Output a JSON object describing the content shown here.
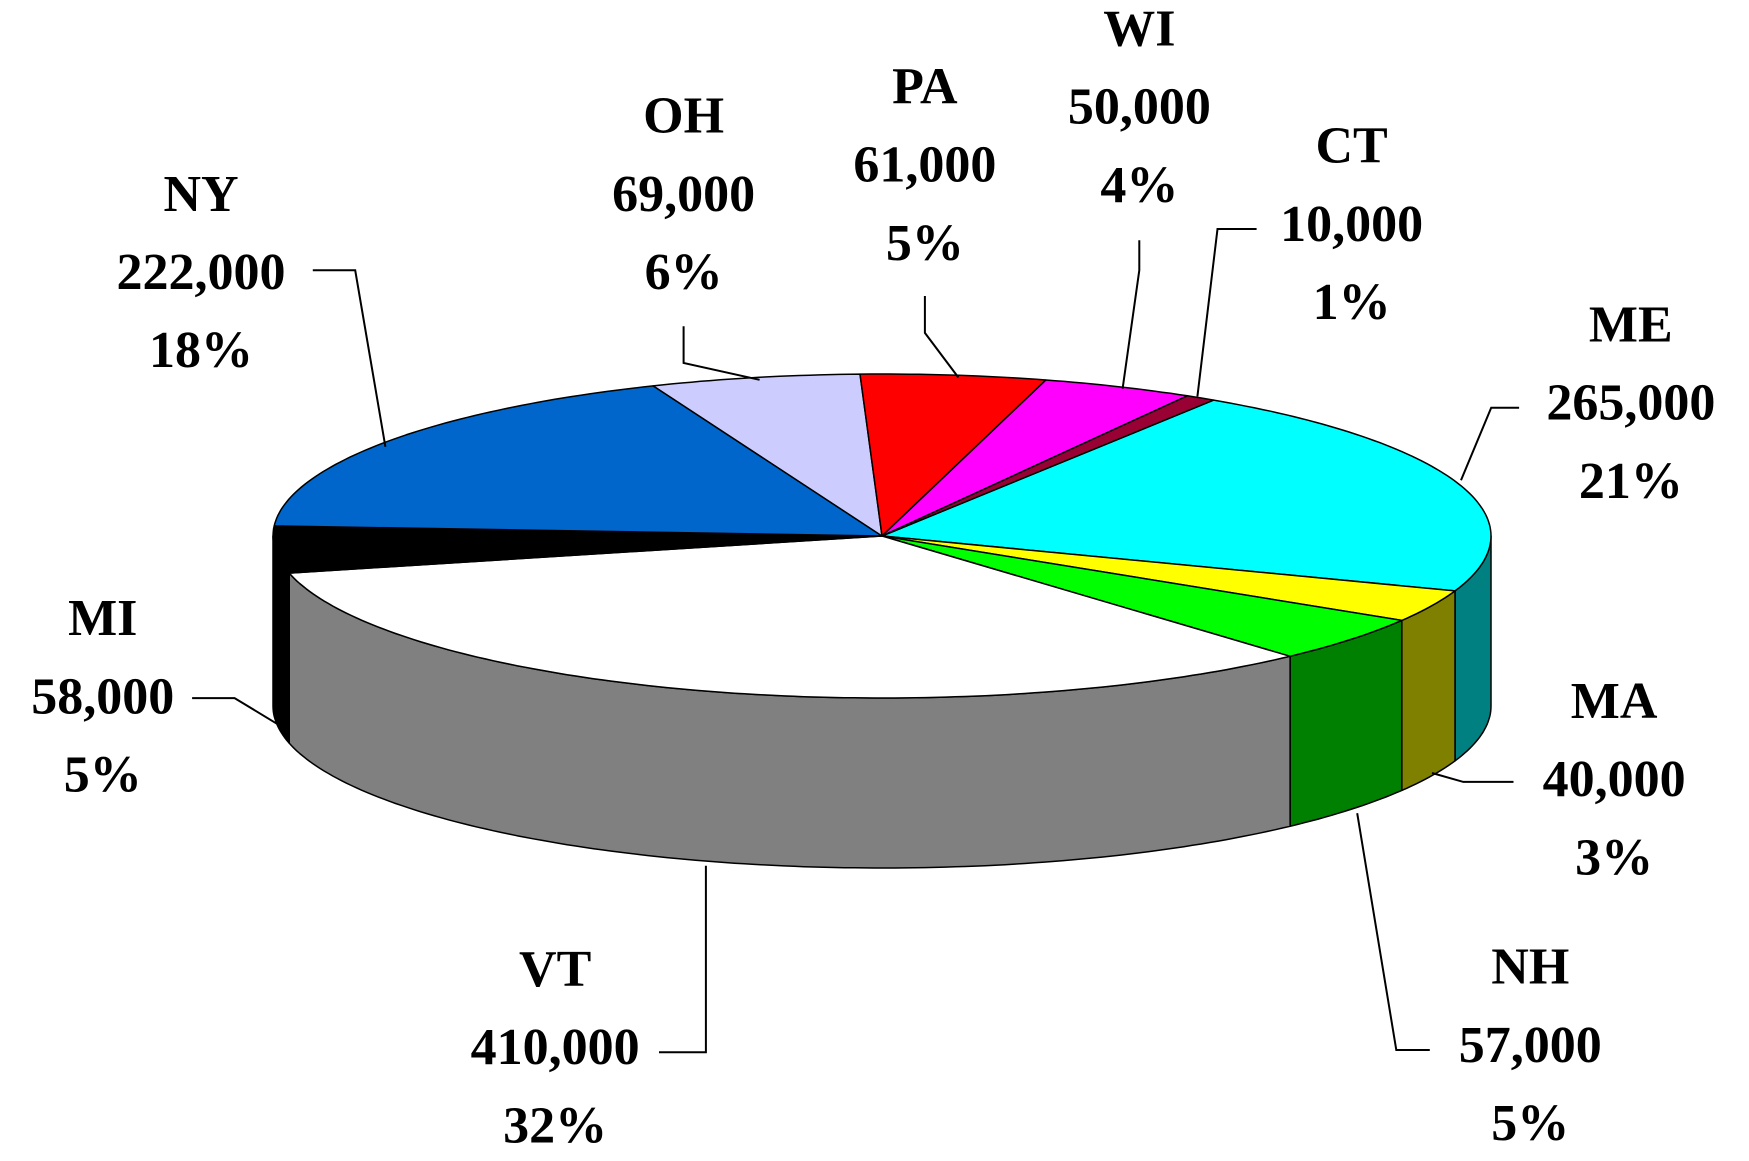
{
  "chart_data": {
    "type": "pie3d",
    "categories": [
      "ME",
      "MA",
      "NH",
      "VT",
      "MI",
      "NY",
      "OH",
      "PA",
      "WI",
      "CT"
    ],
    "values": [
      265000,
      40000,
      57000,
      410000,
      58000,
      222000,
      69000,
      61000,
      50000,
      10000
    ],
    "value_labels": [
      "265,000",
      "40,000",
      "57,000",
      "410,000",
      "58,000",
      "222,000",
      "69,000",
      "61,000",
      "50,000",
      "10,000"
    ],
    "shares": [
      21,
      3,
      5,
      32,
      5,
      18,
      6,
      5,
      4,
      1
    ],
    "share_labels": [
      "21%",
      "3%",
      "5%",
      "32%",
      "5%",
      "18%",
      "6%",
      "5%",
      "4%",
      "1%"
    ],
    "colors": [
      "#00ffff",
      "#ffff00",
      "#00ff00",
      "#ffffff",
      "#000000",
      "#0066cc",
      "#ccccff",
      "#ff0000",
      "#ff00ff",
      "#990033"
    ],
    "side_colors": [
      "#008080",
      "#808000",
      "#008000",
      "#808080",
      "#000000",
      "#003399",
      "#9999cc",
      "#990000",
      "#990099",
      "#660022"
    ]
  }
}
